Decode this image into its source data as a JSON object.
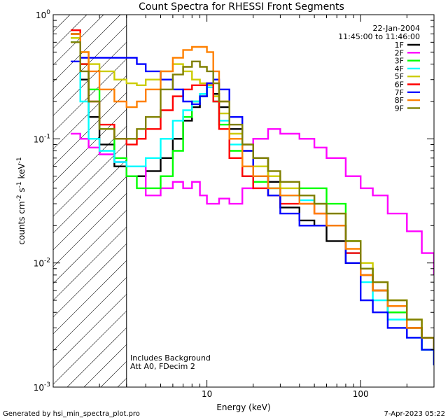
{
  "chart_data": {
    "type": "line",
    "title": "Count Spectra for RHESSI Front Segments",
    "xlabel": "Energy (keV)",
    "ylabel_parts": {
      "a": "counts cm",
      "b": "-2",
      "c": " s",
      "d": "-1",
      "e": " keV",
      "f": "-1"
    },
    "xscale": "log",
    "yscale": "log",
    "xlim": [
      1.0,
      300
    ],
    "ylim": [
      0.001,
      1.0
    ],
    "x_ticks": [
      {
        "value": 10,
        "label": "10"
      },
      {
        "value": 100,
        "label": "100"
      }
    ],
    "y_ticks": [
      {
        "value": 1.0,
        "base": "10",
        "exp": "0"
      },
      {
        "value": 0.1,
        "base": "10",
        "exp": "-1"
      },
      {
        "value": 0.01,
        "base": "10",
        "exp": "-2"
      },
      {
        "value": 0.001,
        "base": "10",
        "exp": "-3"
      }
    ],
    "shaded_region": {
      "x_max": 3.0
    },
    "date": "22-Jan-2004",
    "time_range": "11:45:00 to 11:46:00",
    "annotations": [
      "Includes Background",
      "Att A0, FDecim 2"
    ],
    "series": [
      {
        "name": "1F",
        "color": "#000000",
        "x": [
          1.3,
          1.5,
          1.7,
          2,
          2.5,
          3,
          3.5,
          4,
          5,
          6,
          7,
          8,
          9,
          10,
          11,
          12,
          14,
          17,
          20,
          25,
          30,
          40,
          50,
          60,
          80,
          100,
          120,
          150,
          200,
          250,
          300
        ],
        "y": [
          0.7,
          0.3,
          0.15,
          0.09,
          0.06,
          0.05,
          0.05,
          0.055,
          0.07,
          0.1,
          0.14,
          0.18,
          0.22,
          0.26,
          0.23,
          0.18,
          0.12,
          0.09,
          0.07,
          0.045,
          0.028,
          0.022,
          0.02,
          0.015,
          0.01,
          0.008,
          0.006,
          0.004,
          0.003,
          0.0025,
          0.0015
        ]
      },
      {
        "name": "2F",
        "color": "#ff00ff",
        "x": [
          1.3,
          1.5,
          1.7,
          2,
          2.5,
          3,
          4,
          5,
          6,
          7,
          8,
          9,
          10,
          11,
          12,
          14,
          17,
          20,
          25,
          30,
          40,
          50,
          60,
          80,
          100,
          120,
          150,
          200,
          250,
          300
        ],
        "y": [
          0.11,
          0.1,
          0.085,
          0.075,
          0.065,
          0.06,
          0.035,
          0.04,
          0.045,
          0.04,
          0.045,
          0.035,
          0.03,
          0.03,
          0.033,
          0.03,
          0.04,
          0.1,
          0.12,
          0.11,
          0.1,
          0.085,
          0.07,
          0.05,
          0.04,
          0.035,
          0.025,
          0.018,
          0.012,
          0.008
        ]
      },
      {
        "name": "3F",
        "color": "#00ff00",
        "x": [
          1.3,
          1.5,
          1.7,
          2,
          2.5,
          3,
          3.5,
          4,
          5,
          6,
          7,
          8,
          9,
          10,
          11,
          12,
          14,
          17,
          20,
          25,
          30,
          40,
          50,
          60,
          80,
          100,
          120,
          150,
          200,
          250,
          300
        ],
        "y": [
          0.65,
          0.4,
          0.25,
          0.12,
          0.07,
          0.05,
          0.04,
          0.04,
          0.05,
          0.08,
          0.15,
          0.2,
          0.23,
          0.27,
          0.2,
          0.13,
          0.08,
          0.05,
          0.045,
          0.04,
          0.035,
          0.04,
          0.04,
          0.03,
          0.015,
          0.009,
          0.006,
          0.004,
          0.003,
          0.002,
          0.0015
        ]
      },
      {
        "name": "4F",
        "color": "#00ffff",
        "x": [
          1.3,
          1.5,
          1.7,
          2,
          2.5,
          3,
          3.5,
          4,
          5,
          6,
          7,
          8,
          9,
          10,
          11,
          12,
          14,
          17,
          20,
          25,
          30,
          40,
          50,
          60,
          80,
          100,
          120,
          150,
          200,
          250,
          300
        ],
        "y": [
          0.6,
          0.2,
          0.1,
          0.08,
          0.065,
          0.06,
          0.06,
          0.07,
          0.1,
          0.14,
          0.17,
          0.2,
          0.23,
          0.26,
          0.2,
          0.14,
          0.09,
          0.06,
          0.05,
          0.04,
          0.035,
          0.032,
          0.03,
          0.02,
          0.012,
          0.007,
          0.005,
          0.0035,
          0.0025,
          0.002,
          0.0015
        ]
      },
      {
        "name": "5F",
        "color": "#cccc00",
        "x": [
          1.3,
          1.5,
          1.7,
          2,
          2.5,
          3,
          3.5,
          4,
          5,
          6,
          7,
          8,
          9,
          10,
          11,
          12,
          14,
          17,
          20,
          25,
          30,
          40,
          50,
          60,
          80,
          100,
          120,
          150,
          200,
          250,
          300
        ],
        "y": [
          0.65,
          0.5,
          0.4,
          0.35,
          0.3,
          0.28,
          0.27,
          0.3,
          0.35,
          0.4,
          0.35,
          0.3,
          0.28,
          0.27,
          0.22,
          0.16,
          0.11,
          0.08,
          0.06,
          0.05,
          0.04,
          0.035,
          0.03,
          0.025,
          0.015,
          0.01,
          0.007,
          0.005,
          0.0035,
          0.0025,
          0.002
        ]
      },
      {
        "name": "6F",
        "color": "#ff0000",
        "x": [
          1.3,
          1.5,
          1.7,
          2,
          2.5,
          3,
          3.5,
          4,
          5,
          6,
          7,
          8,
          9,
          10,
          11,
          12,
          14,
          17,
          20,
          25,
          30,
          40,
          50,
          60,
          80,
          100,
          120,
          150,
          200,
          250,
          300
        ],
        "y": [
          0.75,
          0.4,
          0.2,
          0.13,
          0.1,
          0.09,
          0.1,
          0.12,
          0.17,
          0.22,
          0.25,
          0.27,
          0.27,
          0.28,
          0.2,
          0.12,
          0.07,
          0.05,
          0.04,
          0.035,
          0.03,
          0.03,
          0.025,
          0.02,
          0.012,
          0.008,
          0.006,
          0.0045,
          0.003,
          0.0025,
          0.002
        ]
      },
      {
        "name": "7F",
        "color": "#0000ff",
        "x": [
          1.3,
          1.5,
          1.7,
          2,
          2.5,
          3,
          3.5,
          4,
          5,
          6,
          7,
          8,
          9,
          10,
          11,
          12,
          14,
          17,
          20,
          25,
          30,
          40,
          50,
          60,
          80,
          100,
          120,
          150,
          200,
          250,
          300
        ],
        "y": [
          0.42,
          0.45,
          0.45,
          0.45,
          0.45,
          0.45,
          0.4,
          0.35,
          0.3,
          0.25,
          0.2,
          0.19,
          0.22,
          0.28,
          0.3,
          0.25,
          0.15,
          0.08,
          0.05,
          0.035,
          0.025,
          0.02,
          0.02,
          0.02,
          0.01,
          0.005,
          0.004,
          0.003,
          0.0025,
          0.002,
          0.0015
        ]
      },
      {
        "name": "8F",
        "color": "#ff8000",
        "x": [
          1.3,
          1.5,
          1.7,
          2,
          2.5,
          3,
          3.5,
          4,
          5,
          6,
          7,
          8,
          9,
          10,
          11,
          12,
          14,
          17,
          20,
          25,
          30,
          40,
          50,
          60,
          80,
          100,
          120,
          150,
          200,
          250,
          300
        ],
        "y": [
          0.7,
          0.5,
          0.35,
          0.25,
          0.2,
          0.18,
          0.2,
          0.25,
          0.35,
          0.45,
          0.52,
          0.55,
          0.55,
          0.5,
          0.35,
          0.2,
          0.1,
          0.06,
          0.05,
          0.04,
          0.035,
          0.03,
          0.025,
          0.02,
          0.013,
          0.008,
          0.006,
          0.0045,
          0.003,
          0.0025,
          0.002
        ]
      },
      {
        "name": "9F",
        "color": "#808000",
        "x": [
          1.3,
          1.5,
          1.7,
          2,
          2.5,
          3,
          3.5,
          4,
          5,
          6,
          7,
          8,
          9,
          10,
          11,
          12,
          14,
          17,
          20,
          25,
          30,
          40,
          50,
          60,
          80,
          100,
          120,
          150,
          200,
          250,
          300
        ],
        "y": [
          0.6,
          0.35,
          0.2,
          0.12,
          0.1,
          0.1,
          0.12,
          0.15,
          0.25,
          0.33,
          0.38,
          0.42,
          0.38,
          0.35,
          0.28,
          0.2,
          0.13,
          0.09,
          0.07,
          0.055,
          0.045,
          0.035,
          0.03,
          0.025,
          0.015,
          0.009,
          0.007,
          0.005,
          0.0035,
          0.0025,
          0.002
        ]
      }
    ]
  },
  "footer": {
    "left": "Generated by hsi_min_spectra_plot.pro",
    "right": "7-Apr-2023 05:22"
  }
}
